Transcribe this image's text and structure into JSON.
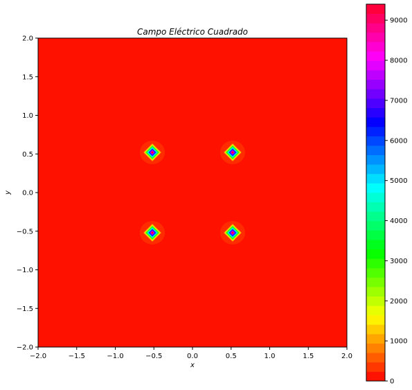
{
  "chart_data": {
    "type": "heatmap",
    "title": "Campo Eléctrico Cuadrado",
    "xlabel": "x",
    "ylabel": "y",
    "xlim": [
      -2.0,
      2.0
    ],
    "ylim": [
      -2.0,
      2.0
    ],
    "x_ticks": [
      "−2.0",
      "−1.5",
      "−1.0",
      "−0.5",
      "0.0",
      "0.5",
      "1.0",
      "1.5",
      "2.0"
    ],
    "y_ticks": [
      "2.0",
      "1.5",
      "1.0",
      "0.5",
      "0.0",
      "−0.5",
      "−1.0",
      "−1.5",
      "−2.0"
    ],
    "background_value": 0,
    "background_color": "#ff1100",
    "charges": [
      {
        "x": -0.52,
        "y": 0.52,
        "peak": 9400
      },
      {
        "x": 0.52,
        "y": 0.52,
        "peak": 9400
      },
      {
        "x": -0.52,
        "y": -0.52,
        "peak": 9400
      },
      {
        "x": 0.52,
        "y": -0.52,
        "peak": 9400
      }
    ],
    "colorbar": {
      "colormap": "gist_rainbow_r",
      "range": [
        0,
        9400
      ],
      "levels": 40,
      "tick_values": [
        0,
        1000,
        2000,
        3000,
        4000,
        5000,
        6000,
        7000,
        8000,
        9000
      ],
      "tick_labels": [
        "0",
        "1000",
        "2000",
        "3000",
        "4000",
        "5000",
        "6000",
        "7000",
        "8000",
        "9000"
      ]
    },
    "grid": false
  }
}
